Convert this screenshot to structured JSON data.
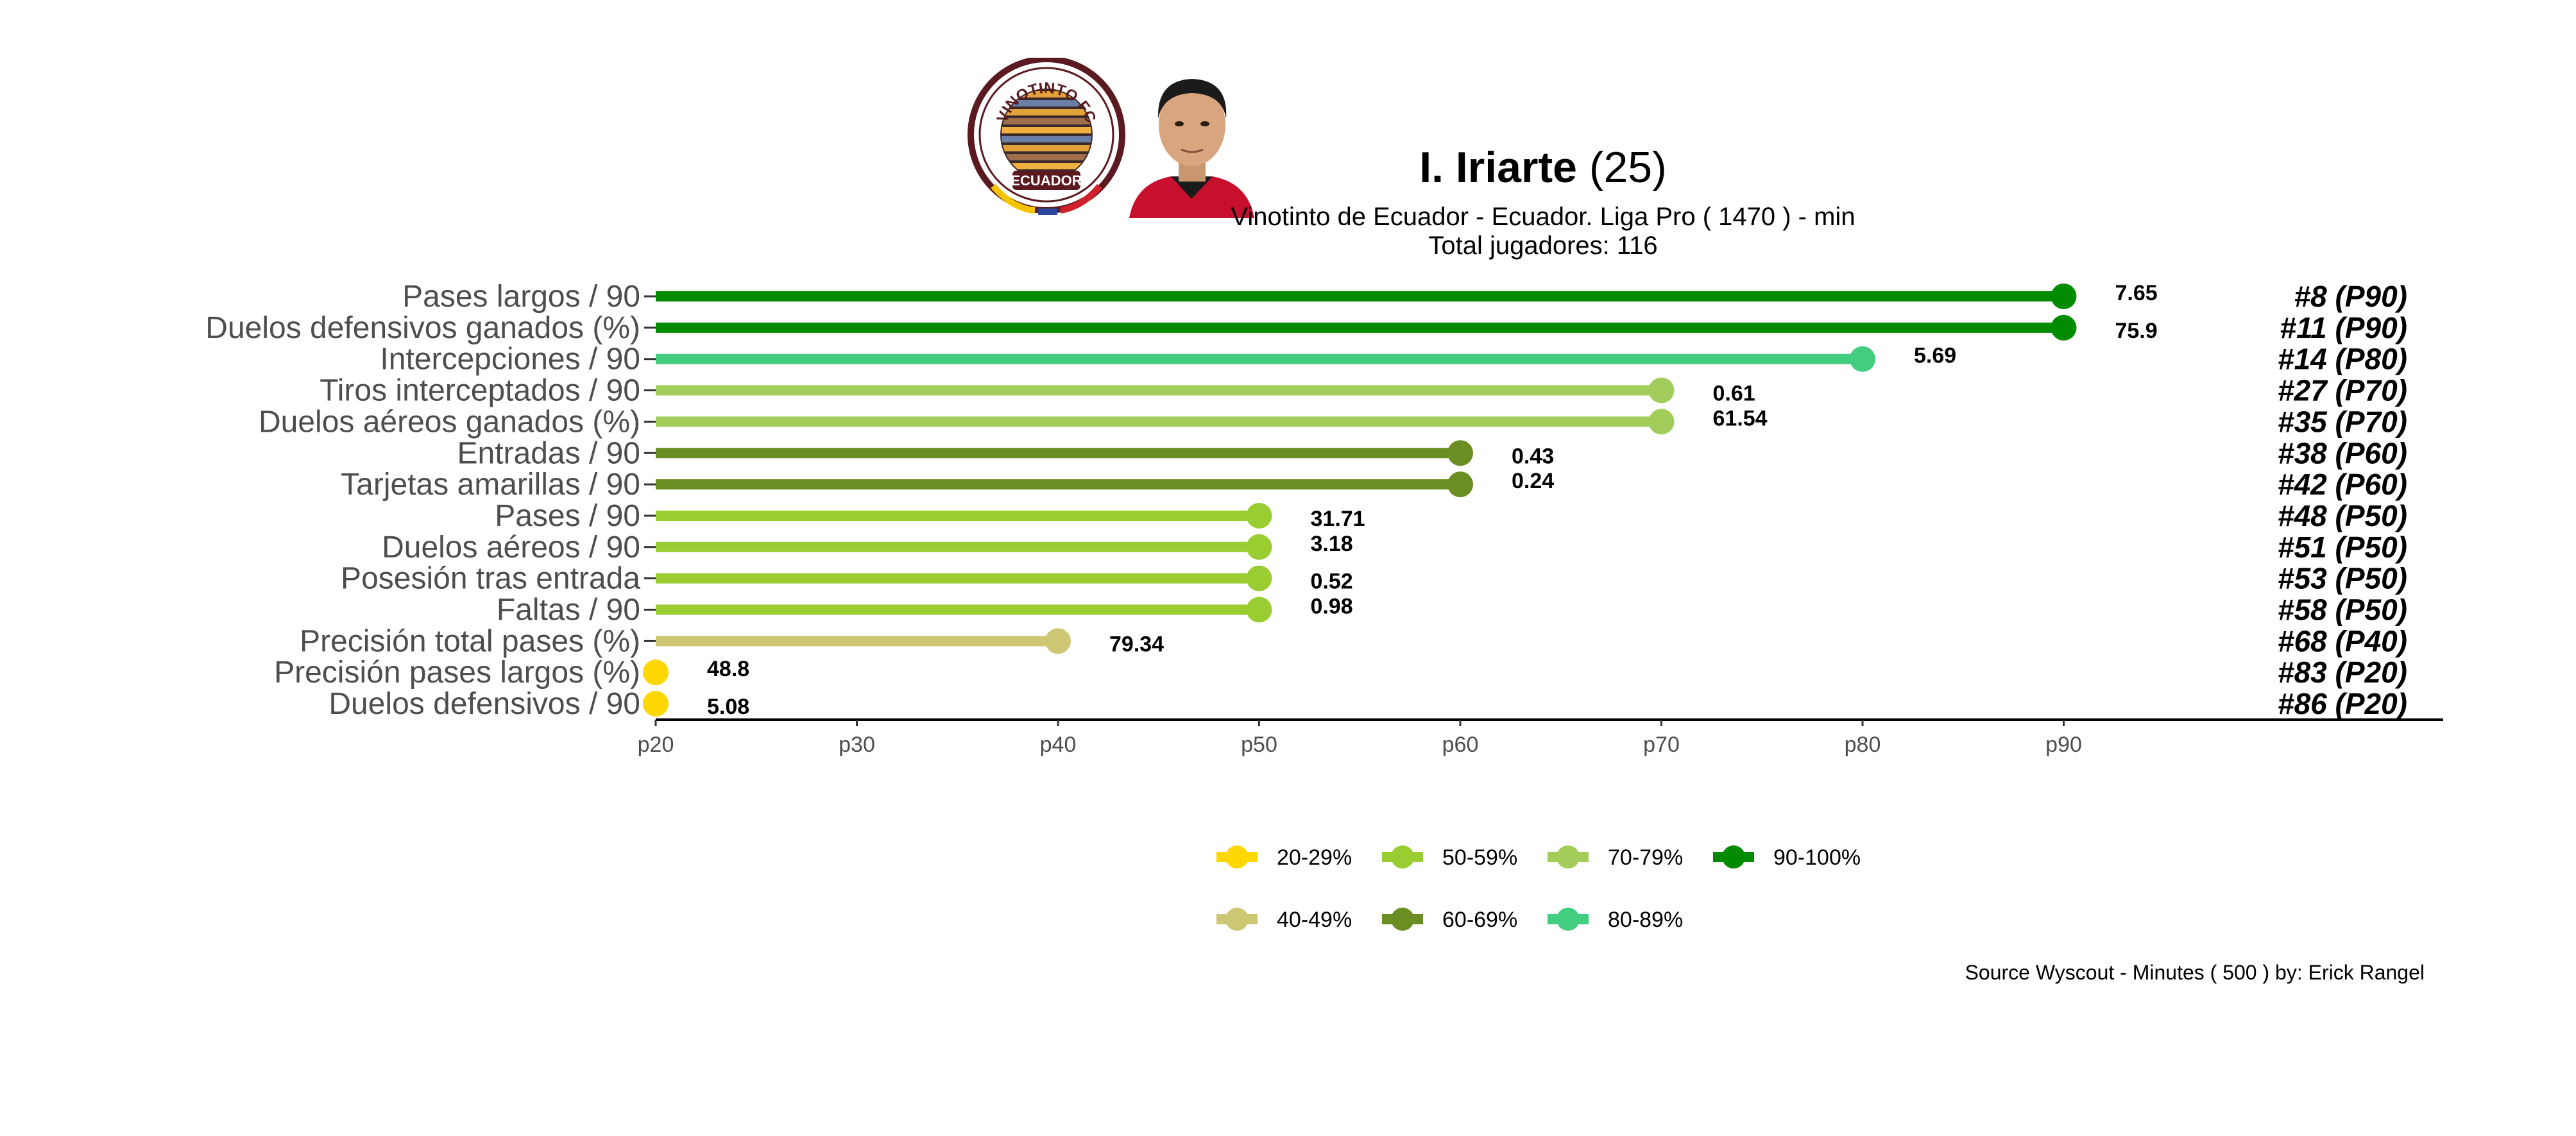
{
  "header": {
    "player_name": "I. Iriarte",
    "player_age": "(25)",
    "subtitle": "Vinotinto de Ecuador  -  Ecuador. Liga Pro  ( 1470 ) - min",
    "total_players": "Total jugadores:  116"
  },
  "logo": {
    "text_top": "VINOTINTO FC",
    "text_bottom": "ECUADOR"
  },
  "photo": {
    "icon": "player-photo-icon"
  },
  "source": "Source Wyscout - Minutes ( 500 ) by: Erick Rangel",
  "colors": {
    "20-29%": "#FFD700",
    "40-49%": "#CDC673",
    "50-59%": "#9ACD32",
    "60-69%": "#6B8E23",
    "70-79%": "#A2CD5A",
    "80-89%": "#43CD80",
    "90-100%": "#008B00"
  },
  "chart_data": {
    "type": "lollipop",
    "x_ticks": [
      "p20",
      "p30",
      "p40",
      "p50",
      "p60",
      "p70",
      "p80",
      "p90"
    ],
    "xlim": [
      20,
      105
    ],
    "grid": false,
    "legend_position": "bottom",
    "legend": [
      {
        "label": "20-29%",
        "color": "#FFD700"
      },
      {
        "label": "50-59%",
        "color": "#9ACD32"
      },
      {
        "label": "70-79%",
        "color": "#A2CD5A"
      },
      {
        "label": "90-100%",
        "color": "#008B00"
      },
      {
        "label": "40-49%",
        "color": "#CDC673"
      },
      {
        "label": "60-69%",
        "color": "#6B8E23"
      },
      {
        "label": "80-89%",
        "color": "#43CD80"
      }
    ],
    "metrics": [
      {
        "label": "Pases largos / 90",
        "percentile": 90,
        "value": "7.65",
        "rank": "#8 (P90)",
        "bucket": "90-100%"
      },
      {
        "label": "Duelos defensivos ganados (%)",
        "percentile": 90,
        "value": "75.9",
        "rank": "#11 (P90)",
        "bucket": "90-100%"
      },
      {
        "label": "Intercepciones / 90",
        "percentile": 80,
        "value": "5.69",
        "rank": "#14 (P80)",
        "bucket": "80-89%"
      },
      {
        "label": "Tiros interceptados / 90",
        "percentile": 70,
        "value": "0.61",
        "rank": "#27 (P70)",
        "bucket": "70-79%"
      },
      {
        "label": "Duelos aéreos ganados (%)",
        "percentile": 70,
        "value": "61.54",
        "rank": "#35 (P70)",
        "bucket": "70-79%"
      },
      {
        "label": "Entradas / 90",
        "percentile": 60,
        "value": "0.43",
        "rank": "#38 (P60)",
        "bucket": "60-69%"
      },
      {
        "label": "Tarjetas amarillas / 90",
        "percentile": 60,
        "value": "0.24",
        "rank": "#42 (P60)",
        "bucket": "60-69%"
      },
      {
        "label": "Pases / 90",
        "percentile": 50,
        "value": "31.71",
        "rank": "#48 (P50)",
        "bucket": "50-59%"
      },
      {
        "label": "Duelos aéreos / 90",
        "percentile": 50,
        "value": "3.18",
        "rank": "#51 (P50)",
        "bucket": "50-59%"
      },
      {
        "label": "Posesión tras entrada",
        "percentile": 50,
        "value": "0.52",
        "rank": "#53 (P50)",
        "bucket": "50-59%"
      },
      {
        "label": "Faltas / 90",
        "percentile": 50,
        "value": "0.98",
        "rank": "#58 (P50)",
        "bucket": "50-59%"
      },
      {
        "label": "Precisión total pases (%)",
        "percentile": 40,
        "value": "79.34",
        "rank": "#68 (P40)",
        "bucket": "40-49%"
      },
      {
        "label": "Precisión pases largos (%)",
        "percentile": 20,
        "value": "48.8",
        "rank": "#83 (P20)",
        "bucket": "20-29%"
      },
      {
        "label": "Duelos defensivos / 90",
        "percentile": 20,
        "value": "5.08",
        "rank": "#86 (P20)",
        "bucket": "20-29%"
      }
    ]
  }
}
